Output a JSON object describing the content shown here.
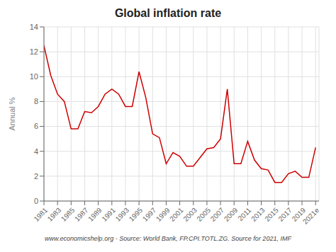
{
  "chart_data": {
    "type": "line",
    "title": "Global inflation rate",
    "y_label": "Annual %",
    "annotation": "www.economicshelp.org - Source: World Bank, FP.CPI.TOTL.ZG. Source for 2021, IMF",
    "color": "#cc0000",
    "grid": true,
    "x": [
      1981,
      1982,
      1983,
      1984,
      1985,
      1986,
      1987,
      1988,
      1989,
      1990,
      1991,
      1992,
      1993,
      1994,
      1995,
      1996,
      1997,
      1998,
      1999,
      2000,
      2001,
      2002,
      2003,
      2004,
      2005,
      2006,
      2007,
      2008,
      2009,
      2010,
      2011,
      2012,
      2013,
      2014,
      2015,
      2016,
      2017,
      2018,
      2019,
      2020,
      2021
    ],
    "values": [
      12.5,
      10.1,
      8.6,
      8.0,
      5.8,
      5.8,
      7.2,
      7.1,
      7.6,
      8.6,
      9.0,
      8.6,
      7.6,
      7.6,
      10.4,
      8.3,
      5.4,
      5.1,
      3.0,
      3.9,
      3.6,
      2.8,
      2.8,
      3.5,
      4.2,
      4.3,
      5.0,
      9.0,
      3.0,
      3.0,
      4.8,
      3.3,
      2.6,
      2.5,
      1.5,
      1.5,
      2.2,
      2.4,
      1.9,
      1.9,
      4.3
    ],
    "xlim": [
      1981,
      2021.5
    ],
    "xticks": [
      1981,
      1983,
      1985,
      1987,
      1989,
      1991,
      1993,
      1995,
      1997,
      1999,
      2001,
      2003,
      2005,
      2007,
      2009,
      2011,
      2013,
      2015,
      2017,
      2019,
      {
        "value": 2021,
        "label": "2021e"
      }
    ],
    "ylim": [
      0,
      14
    ],
    "yticks": [
      0,
      2,
      4,
      6,
      8,
      10,
      12,
      14
    ]
  }
}
